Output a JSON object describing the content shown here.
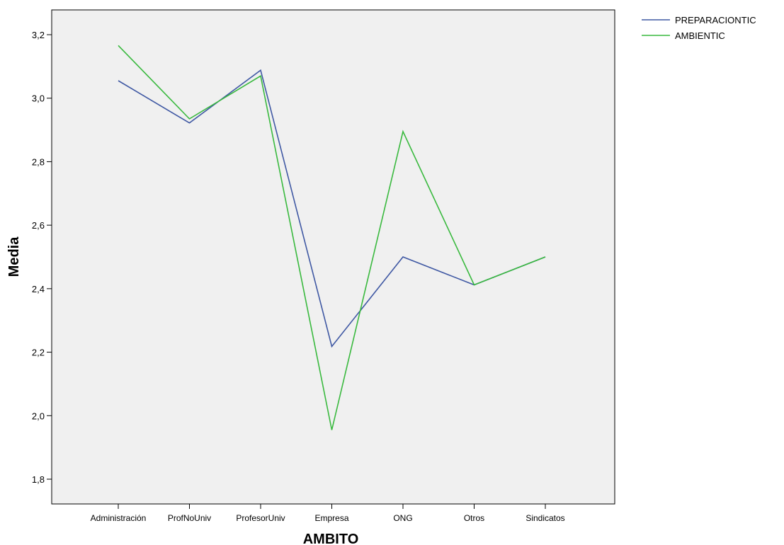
{
  "chart_data": {
    "type": "line",
    "title": "",
    "xlabel": "AMBITO",
    "ylabel": "Media",
    "categories": [
      "Administración",
      "ProfNoUniv",
      "ProfesorUniv",
      "Empresa",
      "ONG",
      "Otros",
      "Sindicatos"
    ],
    "ylim": [
      1.72,
      3.3
    ],
    "yticks": [
      1.8,
      2.0,
      2.2,
      2.4,
      2.6,
      2.8,
      3.0,
      3.2
    ],
    "ytick_labels": [
      "1,8",
      "2,0",
      "2,2",
      "2,4",
      "2,6",
      "2,8",
      "3,0",
      "3,2"
    ],
    "grid": false,
    "legend_position": "outside-top-right",
    "plot_background": "#f0f0f0",
    "series": [
      {
        "name": "PREPARACIONTIC",
        "color": "#3f58a3",
        "values": [
          3.055,
          2.922,
          3.088,
          2.218,
          2.5,
          2.412,
          2.5
        ]
      },
      {
        "name": "AMBIENTIC",
        "color": "#39b93e",
        "values": [
          3.166,
          2.935,
          3.07,
          1.955,
          2.895,
          2.412,
          2.5
        ]
      }
    ]
  }
}
